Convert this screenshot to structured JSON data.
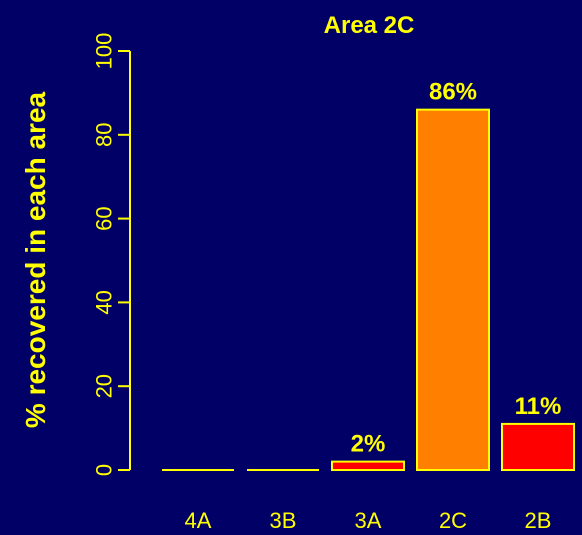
{
  "chart_data": {
    "type": "bar",
    "title": "Area 2C",
    "xlabel": "",
    "ylabel": "% recovered in each area",
    "ylim": [
      0,
      100
    ],
    "yticks": [
      0,
      20,
      40,
      60,
      80,
      100
    ],
    "grid": false,
    "categories": [
      "4A",
      "3B",
      "3A",
      "2C",
      "2B"
    ],
    "values": [
      0,
      0,
      2,
      86,
      11
    ],
    "data_labels": [
      "",
      "",
      "2%",
      "86%",
      "11%"
    ],
    "bar_colors": [
      "#FF0000",
      "#FF0000",
      "#FF0000",
      "#FF8000",
      "#FF0000"
    ],
    "bar_border_color": "#FFFF00",
    "axis_color": "#FFFF00",
    "background_color": "#000066"
  }
}
